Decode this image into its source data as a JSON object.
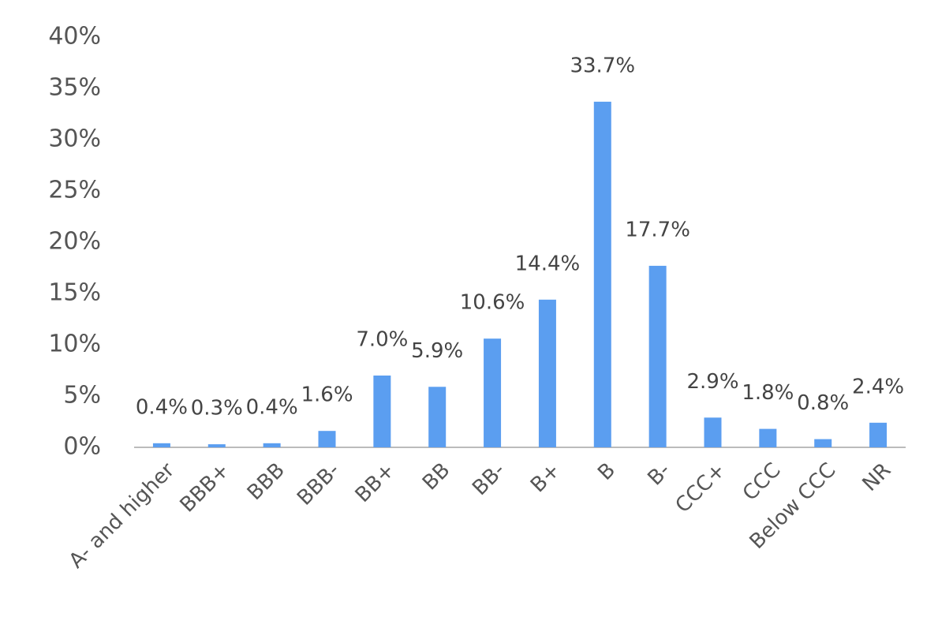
{
  "chart_data": {
    "type": "bar",
    "categories": [
      "A- and higher",
      "BBB+",
      "BBB",
      "BBB-",
      "BB+",
      "BB",
      "BB-",
      "B+",
      "B",
      "B-",
      "CCC+",
      "CCC",
      "Below CCC",
      "NR"
    ],
    "values": [
      0.4,
      0.3,
      0.4,
      1.6,
      7.0,
      5.9,
      10.6,
      14.4,
      33.7,
      17.7,
      2.9,
      1.8,
      0.8,
      2.4
    ],
    "value_labels": [
      "0.4%",
      "0.3%",
      "0.4%",
      "1.6%",
      "7.0%",
      "5.9%",
      "10.6%",
      "14.4%",
      "33.7%",
      "17.7%",
      "2.9%",
      "1.8%",
      "0.8%",
      "2.4%"
    ],
    "color": "#5b9ef0",
    "ylim": [
      0,
      40
    ],
    "yticks": [
      {
        "value": 0,
        "label": "0%"
      },
      {
        "value": 5,
        "label": "5%"
      },
      {
        "value": 10,
        "label": "10%"
      },
      {
        "value": 15,
        "label": "15%"
      },
      {
        "value": 20,
        "label": "20%"
      },
      {
        "value": 25,
        "label": "25%"
      },
      {
        "value": 30,
        "label": "30%"
      },
      {
        "value": 35,
        "label": "35%"
      },
      {
        "value": 40,
        "label": "40%"
      }
    ],
    "grid": false
  }
}
